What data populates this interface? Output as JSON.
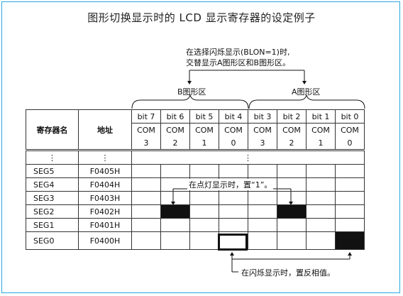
{
  "title": "图形切换显示时的 LCD 显示寄存器的设定例子",
  "notes": {
    "blink_select_line1": "在选择闪烁显示(BLON=1)时,",
    "blink_select_line2": "交替显示A图形区和B图形区。",
    "lit_display": "在点灯显示时，置“1”。",
    "blink_display": "在闪烁显示时，置反相值。"
  },
  "groups": {
    "b_label": "B图形区",
    "a_label": "A图形区"
  },
  "table": {
    "header_register": "寄存器名",
    "header_address": "地址",
    "bits": [
      "bit 7",
      "bit 6",
      "bit 5",
      "bit 4",
      "bit 3",
      "bit 2",
      "bit 1",
      "bit 0"
    ],
    "com_label": "COM",
    "com_numbers": [
      "3",
      "2",
      "1",
      "0",
      "3",
      "2",
      "1",
      "0"
    ],
    "ellipsis": "⋮",
    "rows": [
      {
        "name": "SEG5",
        "address": "F0405H",
        "cells": [
          0,
          0,
          0,
          0,
          0,
          0,
          0,
          0
        ]
      },
      {
        "name": "SEG4",
        "address": "F0404H",
        "cells": [
          0,
          0,
          0,
          0,
          0,
          0,
          0,
          0
        ]
      },
      {
        "name": "SEG3",
        "address": "F0403H",
        "cells": [
          0,
          0,
          0,
          0,
          0,
          0,
          0,
          0
        ]
      },
      {
        "name": "SEG2",
        "address": "F0402H",
        "cells": [
          0,
          1,
          0,
          0,
          0,
          1,
          0,
          0
        ]
      },
      {
        "name": "SEG1",
        "address": "F0401H",
        "cells": [
          0,
          0,
          0,
          0,
          0,
          0,
          0,
          0
        ]
      },
      {
        "name": "SEG0",
        "address": "F0400H",
        "cells": [
          0,
          0,
          0,
          0,
          0,
          0,
          0,
          1
        ]
      }
    ]
  },
  "colors": {
    "frame": "#2aa8e0",
    "fill": "#111111"
  }
}
